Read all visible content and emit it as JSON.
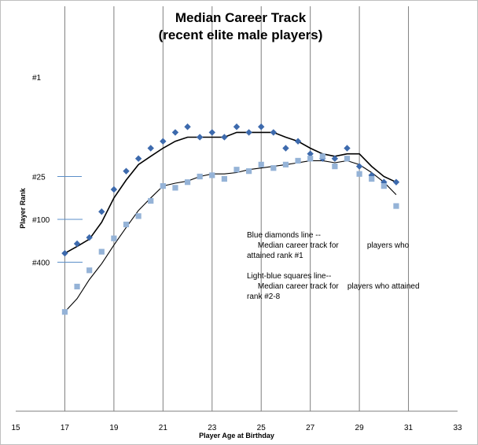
{
  "chart_data": {
    "type": "scatter",
    "title_lines": [
      "Median Career Track",
      "(recent elite male players)"
    ],
    "xlabel": "Player Age at Birthday",
    "ylabel": "Player Rank",
    "xlim": [
      15,
      33
    ],
    "x_ticks": [
      "15",
      "17",
      "19",
      "21",
      "23",
      "25",
      "27",
      "29",
      "31",
      "33"
    ],
    "grid": "vertical",
    "rank_labels": [
      {
        "label": "#1",
        "rank": 1
      },
      {
        "label": "#25",
        "rank": 25
      },
      {
        "label": "#100",
        "rank": 100
      },
      {
        "label": "#400",
        "rank": 400
      }
    ],
    "annotation_lines": [
      "Blue diamonds line --",
      "     Median career track for             players who",
      "attained rank #1",
      "",
      "Light-blue squares line--",
      "     Median career track for    players who attained",
      "rank #2-8"
    ],
    "series": [
      {
        "marker": "diamond",
        "color": "#3d6aad",
        "points": [
          [
            17,
            300
          ],
          [
            17.5,
            220
          ],
          [
            18,
            180
          ],
          [
            18.5,
            78
          ],
          [
            19,
            38
          ],
          [
            19.5,
            21
          ],
          [
            20,
            14
          ],
          [
            20.5,
            10
          ],
          [
            21,
            8
          ],
          [
            21.5,
            6
          ],
          [
            22,
            5
          ],
          [
            22.5,
            7
          ],
          [
            23,
            6
          ],
          [
            23.5,
            7
          ],
          [
            24,
            5
          ],
          [
            24.5,
            6
          ],
          [
            25,
            5
          ],
          [
            25.5,
            6
          ],
          [
            26,
            10
          ],
          [
            26.5,
            8
          ],
          [
            27,
            12
          ],
          [
            27.5,
            14
          ],
          [
            28,
            14
          ],
          [
            28.5,
            10
          ],
          [
            29,
            18
          ],
          [
            29.5,
            24
          ],
          [
            30,
            30
          ],
          [
            30.5,
            30
          ]
        ],
        "line": [
          [
            17,
            300
          ],
          [
            17.5,
            240
          ],
          [
            18,
            190
          ],
          [
            18.5,
            110
          ],
          [
            19,
            50
          ],
          [
            19.5,
            28
          ],
          [
            20,
            17
          ],
          [
            20.5,
            13
          ],
          [
            21,
            10
          ],
          [
            21.5,
            8
          ],
          [
            22,
            7
          ],
          [
            22.5,
            7
          ],
          [
            23,
            7
          ],
          [
            23.5,
            7
          ],
          [
            24,
            6
          ],
          [
            24.5,
            6
          ],
          [
            25,
            6
          ],
          [
            25.5,
            6
          ],
          [
            26,
            7
          ],
          [
            26.5,
            8
          ],
          [
            27,
            10
          ],
          [
            27.5,
            12
          ],
          [
            28,
            13
          ],
          [
            28.5,
            12
          ],
          [
            29,
            12
          ],
          [
            29.5,
            18
          ],
          [
            30,
            25
          ],
          [
            30.5,
            30
          ]
        ]
      },
      {
        "marker": "square",
        "color": "#95b3d7",
        "points": [
          [
            17,
            2000
          ],
          [
            17.5,
            880
          ],
          [
            18,
            520
          ],
          [
            18.5,
            285
          ],
          [
            19,
            185
          ],
          [
            19.5,
            118
          ],
          [
            20,
            90
          ],
          [
            20.5,
            55
          ],
          [
            21,
            34
          ],
          [
            21.5,
            36
          ],
          [
            22,
            30
          ],
          [
            22.5,
            25
          ],
          [
            23,
            24
          ],
          [
            23.5,
            27
          ],
          [
            24,
            20
          ],
          [
            24.5,
            21
          ],
          [
            25,
            17
          ],
          [
            25.5,
            19
          ],
          [
            26,
            17
          ],
          [
            26.5,
            15
          ],
          [
            27,
            14
          ],
          [
            27.5,
            13
          ],
          [
            28,
            18
          ],
          [
            28.5,
            14
          ],
          [
            29,
            23
          ],
          [
            29.5,
            27
          ],
          [
            30,
            34
          ],
          [
            30.5,
            65
          ]
        ],
        "line": [
          [
            17,
            2000
          ],
          [
            17.5,
            1300
          ],
          [
            18,
            700
          ],
          [
            18.5,
            420
          ],
          [
            19,
            230
          ],
          [
            19.5,
            130
          ],
          [
            20,
            75
          ],
          [
            20.5,
            50
          ],
          [
            21,
            34
          ],
          [
            21.5,
            31
          ],
          [
            22,
            29
          ],
          [
            22.5,
            25
          ],
          [
            23,
            23
          ],
          [
            23.5,
            23
          ],
          [
            24,
            22
          ],
          [
            24.5,
            20
          ],
          [
            25,
            19
          ],
          [
            25.5,
            18
          ],
          [
            26,
            17
          ],
          [
            26.5,
            16
          ],
          [
            27,
            15
          ],
          [
            27.5,
            15
          ],
          [
            28,
            16
          ],
          [
            28.5,
            15
          ],
          [
            29,
            17
          ],
          [
            29.5,
            22
          ],
          [
            30,
            30
          ],
          [
            30.5,
            45
          ]
        ]
      }
    ]
  }
}
